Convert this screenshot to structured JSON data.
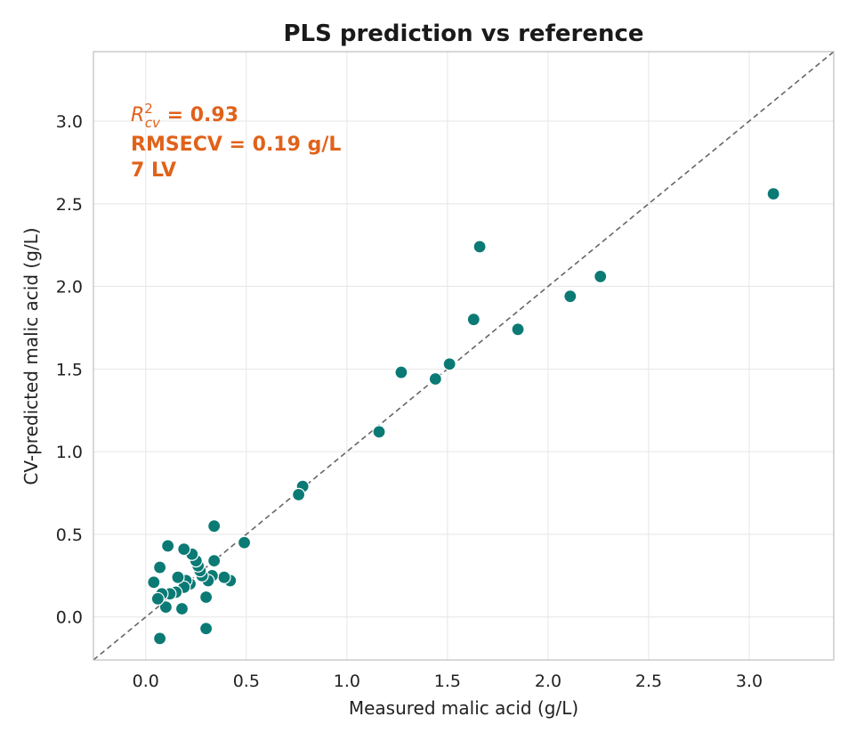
{
  "chart_data": {
    "type": "scatter",
    "title": "PLS prediction vs reference",
    "xlabel": "Measured malic acid (g/L)",
    "ylabel": "CV-predicted malic acid (g/L)",
    "xlim": [
      -0.26,
      3.42
    ],
    "ylim": [
      -0.26,
      3.42
    ],
    "xticks": [
      "0.0",
      "0.5",
      "1.0",
      "1.5",
      "2.0",
      "2.5",
      "3.0"
    ],
    "yticks": [
      "0.0",
      "0.5",
      "1.0",
      "1.5",
      "2.0",
      "2.5",
      "3.0"
    ],
    "grid": true,
    "identity_line": true,
    "colors": {
      "points": "#0b7a75",
      "annotation": "#e0621a",
      "identity": "#666666"
    },
    "annotation": {
      "r2_symbol": "R",
      "r2_sup": "2",
      "r2_sub": "cv",
      "r2_value": " = 0.93",
      "rmsecv": "RMSECV = 0.19 g/L",
      "lv": "7 LV"
    },
    "points": [
      {
        "x": 3.12,
        "y": 2.56
      },
      {
        "x": 2.26,
        "y": 2.06
      },
      {
        "x": 2.11,
        "y": 1.94
      },
      {
        "x": 1.85,
        "y": 1.74
      },
      {
        "x": 1.66,
        "y": 2.24
      },
      {
        "x": 1.63,
        "y": 1.8
      },
      {
        "x": 1.51,
        "y": 1.53
      },
      {
        "x": 1.44,
        "y": 1.44
      },
      {
        "x": 1.27,
        "y": 1.48
      },
      {
        "x": 1.16,
        "y": 1.12
      },
      {
        "x": 0.78,
        "y": 0.79
      },
      {
        "x": 0.76,
        "y": 0.74
      },
      {
        "x": 0.49,
        "y": 0.45
      },
      {
        "x": 0.42,
        "y": 0.22
      },
      {
        "x": 0.39,
        "y": 0.24
      },
      {
        "x": 0.34,
        "y": 0.55
      },
      {
        "x": 0.34,
        "y": 0.34
      },
      {
        "x": 0.33,
        "y": 0.25
      },
      {
        "x": 0.31,
        "y": 0.22
      },
      {
        "x": 0.3,
        "y": 0.12
      },
      {
        "x": 0.3,
        "y": -0.07
      },
      {
        "x": 0.28,
        "y": 0.25
      },
      {
        "x": 0.27,
        "y": 0.28
      },
      {
        "x": 0.26,
        "y": 0.31
      },
      {
        "x": 0.25,
        "y": 0.34
      },
      {
        "x": 0.23,
        "y": 0.38
      },
      {
        "x": 0.22,
        "y": 0.2
      },
      {
        "x": 0.2,
        "y": 0.22
      },
      {
        "x": 0.19,
        "y": 0.18
      },
      {
        "x": 0.19,
        "y": 0.41
      },
      {
        "x": 0.18,
        "y": 0.05
      },
      {
        "x": 0.16,
        "y": 0.24
      },
      {
        "x": 0.15,
        "y": 0.15
      },
      {
        "x": 0.12,
        "y": 0.14
      },
      {
        "x": 0.11,
        "y": 0.43
      },
      {
        "x": 0.1,
        "y": 0.06
      },
      {
        "x": 0.08,
        "y": 0.14
      },
      {
        "x": 0.07,
        "y": 0.3
      },
      {
        "x": 0.07,
        "y": -0.13
      },
      {
        "x": 0.06,
        "y": 0.11
      },
      {
        "x": 0.04,
        "y": 0.21
      }
    ]
  }
}
